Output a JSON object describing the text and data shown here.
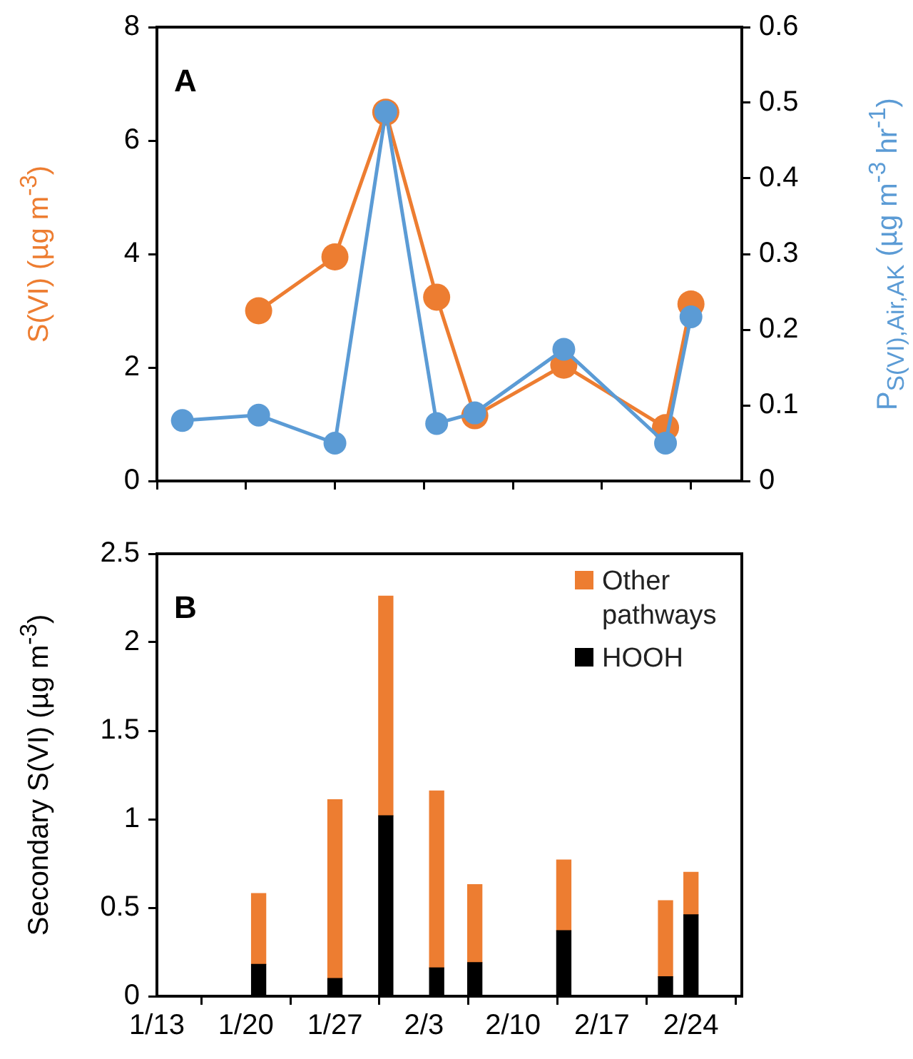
{
  "chart_data": [
    {
      "type": "line",
      "ylabel": "S(VI) (µg m$^{-3}$)",
      "y2label": "P$_{S(VI),Air,AK}$ (µg m$^{-3}$ hr$^{-1}$)",
      "annotations": [
        "A"
      ],
      "x": [
        "--01-15",
        "--01-21",
        "--01-27",
        "--01-31",
        "--02-04",
        "--02-07",
        "--02-14",
        "--02-22",
        "--02-24"
      ],
      "series": [
        {
          "color": "#ed7d31",
          "values": [
            null,
            3.0,
            3.95,
            6.5,
            3.24,
            1.15,
            2.04,
            0.94,
            3.12
          ]
        },
        {
          "color": "#5b9bd5",
          "axis": "y2",
          "values": [
            0.08,
            0.087,
            0.05,
            0.488,
            0.076,
            0.09,
            0.174,
            0.05,
            0.217
          ]
        }
      ],
      "xlim": [
        "--01-13",
        "--02-28"
      ],
      "xticks": [
        {
          "value": "--01-13",
          "label": null
        },
        {
          "value": "--01-20",
          "label": null
        },
        {
          "value": "--01-27",
          "label": null
        },
        {
          "value": "--02-03",
          "label": null
        },
        {
          "value": "--02-10",
          "label": null
        },
        {
          "value": "--02-17",
          "label": null
        },
        {
          "value": "--02-24",
          "label": null
        }
      ],
      "ylim": [
        0,
        8
      ],
      "yticks": [
        0,
        2,
        4,
        6,
        8
      ],
      "y2lim": [
        0,
        0.6
      ],
      "y2ticks": [
        0,
        0.1,
        0.2,
        0.3,
        0.4,
        0.5,
        0.6
      ],
      "tick_labels": "y",
      "marker": "circle",
      "line_style": "solid",
      "grid": false,
      "legend": false
    },
    {
      "type": "bar",
      "stacked": true,
      "ylabel": "Secondary S(VI) (µg m$^{-3}$)",
      "annotations": [
        "B"
      ],
      "x": [
        "--01-21",
        "--01-27",
        "--01-31",
        "--02-04",
        "--02-07",
        "--02-14",
        "--02-22",
        "--02-24"
      ],
      "series": [
        {
          "name": "HOOH",
          "color": "#000000",
          "values": [
            0.18,
            0.1,
            1.02,
            0.16,
            0.19,
            0.37,
            0.11,
            0.46
          ]
        },
        {
          "name": "Other pathways",
          "color": "#ed7d31",
          "values": [
            0.4,
            1.01,
            1.24,
            1.0,
            0.44,
            0.4,
            0.43,
            0.24
          ]
        }
      ],
      "xlim": [
        "--01-13",
        "--02-28"
      ],
      "xticks": [
        {
          "value": "--01-13",
          "label": "1/13"
        },
        {
          "value": "--01-20",
          "label": "1/20"
        },
        {
          "value": "--01-27",
          "label": "1/27"
        },
        {
          "value": "--02-03",
          "label": "2/3"
        },
        {
          "value": "--02-10",
          "label": "2/10"
        },
        {
          "value": "--02-17",
          "label": "2/17"
        },
        {
          "value": "--02-24",
          "label": "2/24"
        }
      ],
      "ylim": [
        0,
        2.5
      ],
      "yticks": [
        0,
        0.5,
        1,
        1.5,
        2,
        2.5
      ],
      "grid": false,
      "legend": "top right"
    }
  ]
}
